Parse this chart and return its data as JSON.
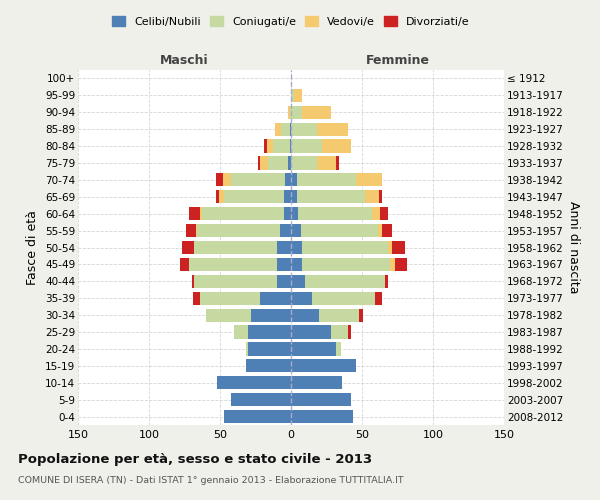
{
  "age_groups": [
    "100+",
    "95-99",
    "90-94",
    "85-89",
    "80-84",
    "75-79",
    "70-74",
    "65-69",
    "60-64",
    "55-59",
    "50-54",
    "45-49",
    "40-44",
    "35-39",
    "30-34",
    "25-29",
    "20-24",
    "15-19",
    "10-14",
    "5-9",
    "0-4"
  ],
  "birth_years": [
    "≤ 1912",
    "1913-1917",
    "1918-1922",
    "1923-1927",
    "1928-1932",
    "1933-1937",
    "1938-1942",
    "1943-1947",
    "1948-1952",
    "1953-1957",
    "1958-1962",
    "1963-1967",
    "1968-1972",
    "1973-1977",
    "1978-1982",
    "1983-1987",
    "1988-1992",
    "1993-1997",
    "1998-2002",
    "2003-2007",
    "2008-2012"
  ],
  "male": {
    "celibi": [
      0,
      0,
      0,
      1,
      1,
      2,
      4,
      5,
      5,
      8,
      10,
      10,
      10,
      22,
      28,
      30,
      30,
      32,
      52,
      42,
      47
    ],
    "coniugati": [
      0,
      0,
      1,
      6,
      12,
      14,
      38,
      42,
      58,
      58,
      58,
      62,
      58,
      42,
      32,
      10,
      2,
      0,
      0,
      0,
      0
    ],
    "vedovi": [
      0,
      0,
      1,
      4,
      4,
      6,
      6,
      4,
      1,
      1,
      0,
      0,
      0,
      0,
      0,
      0,
      0,
      0,
      0,
      0,
      0
    ],
    "divorziati": [
      0,
      0,
      0,
      0,
      2,
      1,
      5,
      2,
      8,
      7,
      9,
      6,
      2,
      5,
      0,
      0,
      0,
      0,
      0,
      0,
      0
    ]
  },
  "female": {
    "nubili": [
      0,
      0,
      0,
      0,
      0,
      0,
      4,
      4,
      5,
      7,
      8,
      8,
      10,
      15,
      20,
      28,
      32,
      46,
      36,
      42,
      44
    ],
    "coniugate": [
      0,
      2,
      8,
      18,
      22,
      18,
      42,
      48,
      52,
      54,
      60,
      62,
      56,
      44,
      28,
      12,
      3,
      0,
      0,
      0,
      0
    ],
    "vedove": [
      0,
      6,
      20,
      22,
      20,
      14,
      18,
      10,
      6,
      3,
      3,
      3,
      0,
      0,
      0,
      0,
      0,
      0,
      0,
      0,
      0
    ],
    "divorziate": [
      0,
      0,
      0,
      0,
      0,
      2,
      0,
      2,
      5,
      7,
      9,
      9,
      2,
      5,
      3,
      2,
      0,
      0,
      0,
      0,
      0
    ]
  },
  "colors": {
    "celibi_nubili": "#4e7fb5",
    "coniugati": "#c5d9a0",
    "vedovi": "#f5c96e",
    "divorziati": "#cc2222"
  },
  "xlim": 150,
  "title": "Popolazione per età, sesso e stato civile - 2013",
  "subtitle": "COMUNE DI ISERA (TN) - Dati ISTAT 1° gennaio 2013 - Elaborazione TUTTITALIA.IT",
  "ylabel": "Fasce di età",
  "ylabel_right": "Anni di nascita",
  "xlabel_maschi": "Maschi",
  "xlabel_femmine": "Femmine",
  "bg_color": "#f0f0eb",
  "plot_bg": "#ffffff",
  "grid_color": "#cccccc"
}
